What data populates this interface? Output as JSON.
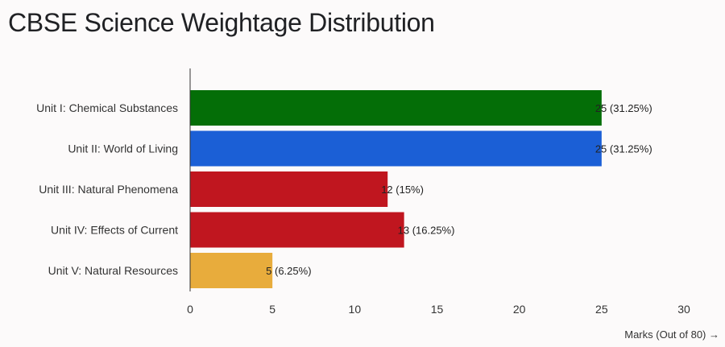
{
  "chart_data": {
    "type": "bar",
    "orientation": "horizontal",
    "title": "CBSE Science Weightage Distribution",
    "xlabel": "Marks (Out of 80) →",
    "ylabel": "",
    "xlim": [
      0,
      30
    ],
    "xticks": [
      0,
      5,
      10,
      15,
      20,
      25,
      30
    ],
    "grid": false,
    "legend": "none",
    "categories": [
      "Unit I: Chemical Substances",
      "Unit II: World of Living",
      "Unit III: Natural Phenomena",
      "Unit IV: Effects of Current",
      "Unit V: Natural Resources"
    ],
    "values": [
      25,
      25,
      12,
      13,
      5
    ],
    "data_labels": [
      "25 (31.25%)",
      "25 (31.25%)",
      "12 (15%)",
      "13 (16.25%)",
      "5 (6.25%)"
    ],
    "colors": [
      "#046e07",
      "#1b5fd6",
      "#c0161f",
      "#c0161f",
      "#e8ac3c"
    ]
  }
}
